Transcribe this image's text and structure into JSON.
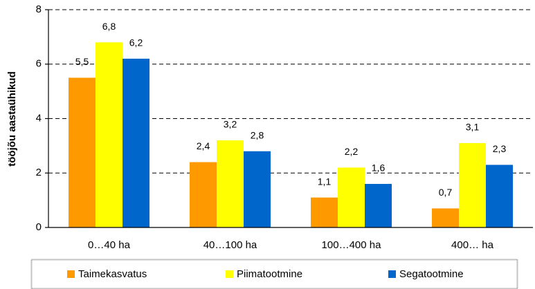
{
  "chart_data": {
    "type": "bar",
    "y_label": "tööjõu aastaühikud",
    "categories": [
      "0…40 ha",
      "40…100 ha",
      "100…400 ha",
      "400… ha"
    ],
    "series": [
      {
        "name": "Taimekasvatus",
        "color": "#ff9900",
        "values": [
          5.5,
          2.4,
          1.1,
          0.7
        ],
        "value_labels": [
          "5,5",
          "2,4",
          "1,1",
          "0,7"
        ]
      },
      {
        "name": "Piimatootmine",
        "color": "#ffff00",
        "values": [
          6.8,
          3.2,
          2.2,
          3.1
        ],
        "value_labels": [
          "6,8",
          "3,2",
          "2,2",
          "3,1"
        ]
      },
      {
        "name": "Segatootmine",
        "color": "#0066cc",
        "values": [
          6.2,
          2.8,
          1.6,
          2.3
        ],
        "value_labels": [
          "6,2",
          "2,8",
          "1,6",
          "2,3"
        ]
      }
    ],
    "ylim": [
      0,
      8
    ],
    "yticks": [
      0,
      2,
      4,
      6,
      8
    ],
    "grid": true,
    "legend": "bottom"
  }
}
